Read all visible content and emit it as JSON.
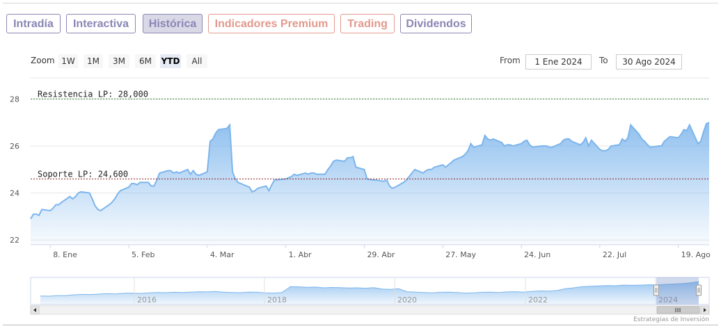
{
  "tabs": [
    {
      "label": "Intradía",
      "style": "purple",
      "active": false
    },
    {
      "label": "Interactiva",
      "style": "purple",
      "active": false
    },
    {
      "label": "Histórica",
      "style": "purple",
      "active": true
    },
    {
      "label": "Indicadores Premium",
      "style": "orange",
      "active": false
    },
    {
      "label": "Trading",
      "style": "orange",
      "active": false
    },
    {
      "label": "Dividendos",
      "style": "purple",
      "active": false
    }
  ],
  "zoom": {
    "label": "Zoom",
    "buttons": [
      "1W",
      "1M",
      "3M",
      "6M",
      "YTD",
      "All"
    ],
    "selected": "YTD"
  },
  "range": {
    "from_label": "From",
    "from_value": "1 Ene 2024",
    "to_label": "To",
    "to_value": "30 Ago 2024"
  },
  "credit": "Estrategias de Inversión",
  "colors": {
    "line": "#7cb5ec",
    "resistance": "#2e7d32",
    "support": "#8b1a1a",
    "purple": "#8a86b5",
    "orange": "#e3998d"
  },
  "chart_data": {
    "type": "area",
    "x_ticks": [
      "8. Ene",
      "5. Feb",
      "4. Mar",
      "1. Abr",
      "29. Abr",
      "27. May",
      "24. Jun",
      "22. Jul",
      "19. Ago"
    ],
    "y_ticks": [
      22,
      24,
      26,
      28
    ],
    "ylim": [
      21.8,
      28.9
    ],
    "x_domain": [
      "2024-01-01",
      "2024-08-30"
    ],
    "lines": [
      {
        "label": "Resistencia LP: 28,000",
        "value": 28.0
      },
      {
        "label": "Soporte LP: 24,600",
        "value": 24.6
      }
    ],
    "series": [
      {
        "values": [
          [
            "2024-01-01",
            22.9
          ],
          [
            "2024-01-02",
            23.1
          ],
          [
            "2024-01-03",
            23.1
          ],
          [
            "2024-01-04",
            23.05
          ],
          [
            "2024-01-05",
            23.3
          ],
          [
            "2024-01-08",
            23.25
          ],
          [
            "2024-01-09",
            23.35
          ],
          [
            "2024-01-10",
            23.5
          ],
          [
            "2024-01-11",
            23.5
          ],
          [
            "2024-01-12",
            23.6
          ],
          [
            "2024-01-15",
            23.85
          ],
          [
            "2024-01-16",
            23.75
          ],
          [
            "2024-01-17",
            23.85
          ],
          [
            "2024-01-18",
            24.0
          ],
          [
            "2024-01-19",
            24.05
          ],
          [
            "2024-01-22",
            24.0
          ],
          [
            "2024-01-23",
            23.75
          ],
          [
            "2024-01-24",
            23.45
          ],
          [
            "2024-01-25",
            23.3
          ],
          [
            "2024-01-26",
            23.25
          ],
          [
            "2024-01-29",
            23.5
          ],
          [
            "2024-01-30",
            23.6
          ],
          [
            "2024-01-31",
            23.75
          ],
          [
            "2024-02-01",
            23.95
          ],
          [
            "2024-02-02",
            24.1
          ],
          [
            "2024-02-05",
            24.25
          ],
          [
            "2024-02-06",
            24.4
          ],
          [
            "2024-02-07",
            24.4
          ],
          [
            "2024-02-08",
            24.35
          ],
          [
            "2024-02-09",
            24.45
          ],
          [
            "2024-02-12",
            24.45
          ],
          [
            "2024-02-13",
            24.3
          ],
          [
            "2024-02-14",
            24.3
          ],
          [
            "2024-02-15",
            24.55
          ],
          [
            "2024-02-16",
            24.85
          ],
          [
            "2024-02-19",
            24.95
          ],
          [
            "2024-02-20",
            24.95
          ],
          [
            "2024-02-21",
            24.85
          ],
          [
            "2024-02-22",
            24.9
          ],
          [
            "2024-02-23",
            24.85
          ],
          [
            "2024-02-26",
            25.0
          ],
          [
            "2024-02-27",
            24.8
          ],
          [
            "2024-02-28",
            24.95
          ],
          [
            "2024-02-29",
            24.8
          ],
          [
            "2024-03-01",
            24.75
          ],
          [
            "2024-03-04",
            24.9
          ],
          [
            "2024-03-05",
            26.2
          ],
          [
            "2024-03-06",
            26.3
          ],
          [
            "2024-03-07",
            26.55
          ],
          [
            "2024-03-08",
            26.7
          ],
          [
            "2024-03-11",
            26.75
          ],
          [
            "2024-03-12",
            26.9
          ],
          [
            "2024-03-13",
            24.9
          ],
          [
            "2024-03-14",
            24.6
          ],
          [
            "2024-03-15",
            24.45
          ],
          [
            "2024-03-18",
            24.3
          ],
          [
            "2024-03-19",
            24.25
          ],
          [
            "2024-03-20",
            24.05
          ],
          [
            "2024-03-21",
            24.1
          ],
          [
            "2024-03-22",
            24.2
          ],
          [
            "2024-03-25",
            24.3
          ],
          [
            "2024-03-26",
            24.1
          ],
          [
            "2024-03-27",
            24.35
          ],
          [
            "2024-03-28",
            24.55
          ],
          [
            "2024-04-01",
            24.6
          ],
          [
            "2024-04-02",
            24.65
          ],
          [
            "2024-04-03",
            24.7
          ],
          [
            "2024-04-04",
            24.8
          ],
          [
            "2024-04-05",
            24.75
          ],
          [
            "2024-04-08",
            24.85
          ],
          [
            "2024-04-09",
            24.8
          ],
          [
            "2024-04-10",
            24.85
          ],
          [
            "2024-04-11",
            24.85
          ],
          [
            "2024-04-12",
            24.8
          ],
          [
            "2024-04-15",
            24.8
          ],
          [
            "2024-04-16",
            25.0
          ],
          [
            "2024-04-17",
            25.15
          ],
          [
            "2024-04-18",
            25.35
          ],
          [
            "2024-04-19",
            25.4
          ],
          [
            "2024-04-22",
            25.35
          ],
          [
            "2024-04-23",
            25.5
          ],
          [
            "2024-04-24",
            25.5
          ],
          [
            "2024-04-25",
            25.55
          ],
          [
            "2024-04-26",
            25.1
          ],
          [
            "2024-04-29",
            25.0
          ],
          [
            "2024-04-30",
            24.6
          ],
          [
            "2024-05-02",
            24.55
          ],
          [
            "2024-05-03",
            24.55
          ],
          [
            "2024-05-06",
            24.5
          ],
          [
            "2024-05-07",
            24.55
          ],
          [
            "2024-05-08",
            24.3
          ],
          [
            "2024-05-09",
            24.2
          ],
          [
            "2024-05-10",
            24.25
          ],
          [
            "2024-05-13",
            24.45
          ],
          [
            "2024-05-14",
            24.55
          ],
          [
            "2024-05-15",
            24.7
          ],
          [
            "2024-05-16",
            24.85
          ],
          [
            "2024-05-17",
            25.0
          ],
          [
            "2024-05-20",
            24.85
          ],
          [
            "2024-05-21",
            24.95
          ],
          [
            "2024-05-22",
            25.0
          ],
          [
            "2024-05-23",
            25.0
          ],
          [
            "2024-05-24",
            25.1
          ],
          [
            "2024-05-27",
            25.2
          ],
          [
            "2024-05-28",
            25.1
          ],
          [
            "2024-05-29",
            25.2
          ],
          [
            "2024-05-30",
            25.3
          ],
          [
            "2024-05-31",
            25.4
          ],
          [
            "2024-06-03",
            25.55
          ],
          [
            "2024-06-04",
            25.65
          ],
          [
            "2024-06-05",
            25.8
          ],
          [
            "2024-06-06",
            26.1
          ],
          [
            "2024-06-07",
            25.95
          ],
          [
            "2024-06-10",
            26.05
          ],
          [
            "2024-06-11",
            26.45
          ],
          [
            "2024-06-12",
            26.3
          ],
          [
            "2024-06-13",
            26.25
          ],
          [
            "2024-06-14",
            26.3
          ],
          [
            "2024-06-17",
            26.15
          ],
          [
            "2024-06-18",
            26.0
          ],
          [
            "2024-06-19",
            26.05
          ],
          [
            "2024-06-20",
            26.05
          ],
          [
            "2024-06-21",
            26.0
          ],
          [
            "2024-06-24",
            26.1
          ],
          [
            "2024-06-25",
            26.2
          ],
          [
            "2024-06-26",
            26.25
          ],
          [
            "2024-06-27",
            26.05
          ],
          [
            "2024-06-28",
            25.95
          ],
          [
            "2024-07-01",
            26.0
          ],
          [
            "2024-07-02",
            26.0
          ],
          [
            "2024-07-03",
            26.0
          ],
          [
            "2024-07-04",
            25.95
          ],
          [
            "2024-07-05",
            25.95
          ],
          [
            "2024-07-08",
            26.1
          ],
          [
            "2024-07-09",
            26.25
          ],
          [
            "2024-07-10",
            26.3
          ],
          [
            "2024-07-11",
            26.3
          ],
          [
            "2024-07-12",
            26.2
          ],
          [
            "2024-07-15",
            26.05
          ],
          [
            "2024-07-16",
            26.15
          ],
          [
            "2024-07-17",
            26.35
          ],
          [
            "2024-07-18",
            26.0
          ],
          [
            "2024-07-19",
            26.25
          ],
          [
            "2024-07-22",
            25.85
          ],
          [
            "2024-07-23",
            25.8
          ],
          [
            "2024-07-24",
            25.8
          ],
          [
            "2024-07-25",
            25.85
          ],
          [
            "2024-07-26",
            26.0
          ],
          [
            "2024-07-29",
            26.05
          ],
          [
            "2024-07-30",
            26.3
          ],
          [
            "2024-07-31",
            26.2
          ],
          [
            "2024-08-01",
            26.35
          ],
          [
            "2024-08-02",
            26.9
          ],
          [
            "2024-08-05",
            26.5
          ],
          [
            "2024-08-06",
            26.3
          ],
          [
            "2024-08-07",
            26.2
          ],
          [
            "2024-08-08",
            26.05
          ],
          [
            "2024-08-09",
            25.95
          ],
          [
            "2024-08-12",
            26.0
          ],
          [
            "2024-08-13",
            26.0
          ],
          [
            "2024-08-14",
            26.2
          ],
          [
            "2024-08-15",
            26.3
          ],
          [
            "2024-08-16",
            26.4
          ],
          [
            "2024-08-19",
            26.35
          ],
          [
            "2024-08-20",
            26.5
          ],
          [
            "2024-08-21",
            26.7
          ],
          [
            "2024-08-22",
            26.65
          ],
          [
            "2024-08-23",
            26.9
          ],
          [
            "2024-08-26",
            26.1
          ],
          [
            "2024-08-27",
            26.2
          ],
          [
            "2024-08-28",
            26.6
          ],
          [
            "2024-08-29",
            26.95
          ],
          [
            "2024-08-30",
            27.0
          ]
        ]
      }
    ],
    "navigator": {
      "year_labels": [
        "2016",
        "2018",
        "2020",
        "2022",
        "2024"
      ]
    }
  }
}
